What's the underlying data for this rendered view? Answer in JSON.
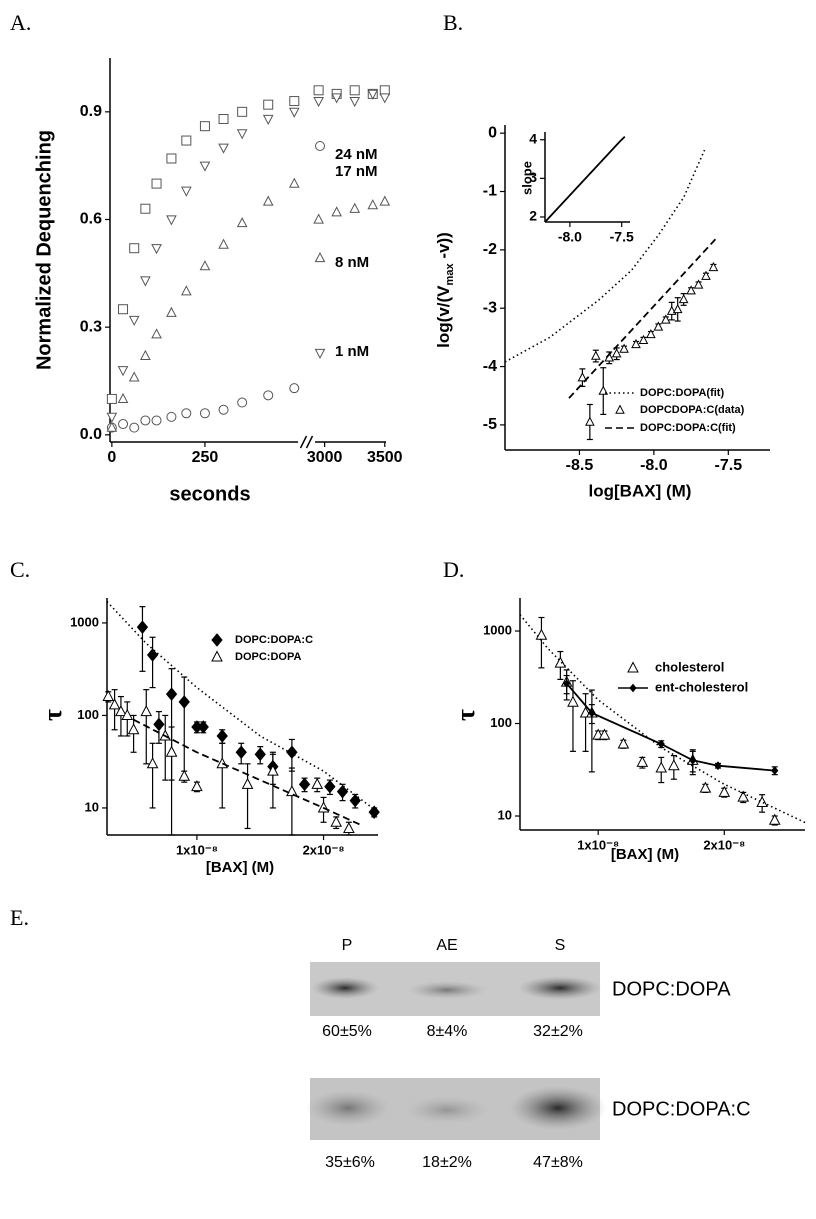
{
  "chart_data": [
    {
      "type": "scatter",
      "panel_label": "A.",
      "xlabel": "seconds",
      "ylabel": "Normalized Dequenching",
      "xlim": [
        -5,
        3510
      ],
      "xbreak": [
        500,
        2920
      ],
      "xticks": [
        0,
        250,
        3000,
        3500
      ],
      "ylim": [
        -0.02,
        1.05
      ],
      "yticks": [
        {
          "value": 0,
          "label": "0.0"
        },
        0.3,
        0.6,
        0.9
      ],
      "series": [
        {
          "name": "24 nM",
          "marker": "square",
          "filled": false,
          "color": "#555555",
          "x": [
            0,
            30,
            60,
            90,
            120,
            160,
            200,
            250,
            300,
            350,
            420,
            490,
            2950,
            3100,
            3250,
            3400,
            3500
          ],
          "values": [
            0.1,
            0.35,
            0.52,
            0.63,
            0.7,
            0.77,
            0.82,
            0.86,
            0.88,
            0.9,
            0.92,
            0.93,
            0.96,
            0.95,
            0.96,
            0.95,
            0.96
          ]
        },
        {
          "name": "17 nM",
          "marker": "circle",
          "filled": false,
          "color": "#555555",
          "x": [
            0,
            30,
            60,
            90,
            120,
            160,
            200,
            250,
            300,
            350,
            420,
            490
          ],
          "values": [
            0.02,
            0.03,
            0.02,
            0.04,
            0.04,
            0.05,
            0.06,
            0.06,
            0.07,
            0.09,
            0.11,
            0.13
          ]
        },
        {
          "name": "8 nM",
          "marker": "triangle",
          "filled": false,
          "color": "#555555",
          "x": [
            0,
            30,
            60,
            90,
            120,
            160,
            200,
            250,
            300,
            350,
            420,
            490,
            2950,
            3100,
            3250,
            3400,
            3500
          ],
          "values": [
            0.02,
            0.1,
            0.16,
            0.22,
            0.28,
            0.34,
            0.4,
            0.47,
            0.53,
            0.59,
            0.65,
            0.7,
            0.6,
            0.62,
            0.63,
            0.64,
            0.65
          ]
        },
        {
          "name": "1 nM",
          "marker": "triangle-down",
          "filled": false,
          "color": "#555555",
          "x": [
            0,
            30,
            60,
            90,
            120,
            160,
            200,
            250,
            300,
            350,
            420,
            490,
            2950,
            3100,
            3250,
            3400,
            3500
          ],
          "values": [
            0.05,
            0.18,
            0.32,
            0.43,
            0.52,
            0.6,
            0.68,
            0.75,
            0.8,
            0.84,
            0.88,
            0.9,
            0.93,
            0.94,
            0.93,
            0.95,
            0.94
          ]
        }
      ]
    },
    {
      "type": "scatter",
      "panel_label": "B.",
      "xlabel": "log[BAX] (M)",
      "ylabel_parts": [
        "log(v/(V",
        "max",
        " -v))"
      ],
      "xlim": [
        -9.0,
        -7.22
      ],
      "xticks": [
        -8.5,
        {
          "value": -8,
          "label": "-8.0"
        },
        -7.5
      ],
      "ylim": [
        -5.43,
        0.14
      ],
      "yticks": [
        0,
        -1,
        -2,
        -3,
        -4,
        -5
      ],
      "series": [
        {
          "name": "DOPC:DOPA(fit)",
          "line": "dotted",
          "color": "#000000",
          "x": [
            -9.0,
            -8.7,
            -8.37,
            -8.15,
            -7.97,
            -7.8,
            -7.66
          ],
          "values": [
            -3.92,
            -3.5,
            -2.86,
            -2.35,
            -1.75,
            -1.1,
            -0.29
          ]
        },
        {
          "name": "DOPCDOPA:C(data)",
          "marker": "triangle",
          "filled": false,
          "color": "#000000",
          "x": [
            -8.48,
            -8.43,
            -8.39,
            -8.34,
            -8.3,
            -8.25,
            -8.2,
            -8.12,
            -8.07,
            -8.02,
            -7.97,
            -7.92,
            -7.88,
            -7.84,
            -7.8,
            -7.75,
            -7.7,
            -7.65,
            -7.6
          ],
          "values": [
            -4.19,
            -4.95,
            -3.82,
            -4.42,
            -3.85,
            -3.78,
            -3.7,
            -3.62,
            -3.55,
            -3.45,
            -3.32,
            -3.2,
            -3.05,
            -3.02,
            -2.85,
            -2.7,
            -2.6,
            -2.45,
            -2.3
          ],
          "errors": [
            0.15,
            0.3,
            0.1,
            0.4,
            0.1,
            0.1,
            0.05,
            0.05,
            0.05,
            0.05,
            0.05,
            0.05,
            0.15,
            0.2,
            0.1,
            0.05,
            0.05,
            0.05,
            0.05
          ]
        },
        {
          "name": "DOPC:DOPA:C(fit)",
          "line": "dashed",
          "color": "#000000",
          "x": [
            -8.57,
            -7.58
          ],
          "values": [
            -4.54,
            -1.8
          ]
        }
      ],
      "inset": {
        "ylabel": "slope",
        "xlim": [
          -8.24,
          -7.42
        ],
        "xticks": [
          {
            "value": -8,
            "label": "-8.0"
          },
          -7.5
        ],
        "ylim": [
          1.87,
          4.2
        ],
        "yticks": [
          2,
          3,
          4
        ],
        "series": [
          {
            "line": "solid",
            "color": "#000000",
            "x": [
              -8.24,
              -7.52,
              -7.47
            ],
            "values": [
              1.87,
              3.95,
              4.08
            ]
          }
        ]
      }
    },
    {
      "type": "scatter",
      "panel_label": "C.",
      "xlabel": "[BAX] (M)",
      "ylabel": "τ",
      "yscale": "log",
      "xlim": [
        2.9e-09,
        2.43e-08
      ],
      "xticks": [
        {
          "value": 1e-08,
          "label": "1x10⁻⁸"
        },
        {
          "value": 2e-08,
          "label": "2x10⁻⁸"
        }
      ],
      "ylim": [
        5.1,
        1860
      ],
      "yticks": [
        10,
        100,
        1000
      ],
      "series": [
        {
          "name": "DOPC:DOPA:C",
          "marker": "diamond",
          "filled": true,
          "color": "#000000",
          "x": [
            5.7e-09,
            6.5e-09,
            7e-09,
            8e-09,
            9e-09,
            1e-08,
            1.05e-08,
            1.2e-08,
            1.35e-08,
            1.5e-08,
            1.6e-08,
            1.75e-08,
            1.85e-08,
            2.05e-08,
            2.15e-08,
            2.25e-08,
            2.4e-08
          ],
          "values": [
            900,
            450,
            80,
            170,
            140,
            75,
            75,
            60,
            40,
            38,
            28,
            40,
            18,
            17,
            15,
            12,
            9
          ],
          "errors": [
            600,
            250,
            30,
            150,
            120,
            10,
            10,
            10,
            10,
            8,
            10,
            15,
            3,
            3,
            3,
            2,
            1
          ]
        },
        {
          "name": "DOPC:DOPA",
          "marker": "triangle",
          "filled": false,
          "color": "#000000",
          "x": [
            3e-09,
            3.5e-09,
            4e-09,
            4.5e-09,
            5e-09,
            6e-09,
            6.5e-09,
            7.5e-09,
            8e-09,
            9e-09,
            1e-08,
            1.2e-08,
            1.4e-08,
            1.6e-08,
            1.75e-08,
            1.95e-08,
            2e-08,
            2.1e-08,
            2.2e-08
          ],
          "values": [
            160,
            130,
            110,
            100,
            70,
            110,
            30,
            60,
            40,
            22,
            17,
            30,
            18,
            25,
            15,
            18,
            10,
            7,
            6
          ],
          "errors": [
            20,
            60,
            50,
            40,
            30,
            80,
            20,
            40,
            35,
            3,
            2,
            20,
            12,
            15,
            12,
            3,
            3,
            1,
            1
          ]
        },
        {
          "line": "dotted",
          "color": "#000000",
          "x": [
            2.9e-09,
            6e-09,
            1e-08,
            1.5e-08,
            2e-08,
            2.43e-08
          ],
          "values": [
            1700,
            600,
            200,
            60,
            25,
            9
          ]
        },
        {
          "line": "dashed",
          "color": "#000000",
          "x": [
            5e-09,
            1e-08,
            1.5e-08,
            2e-08,
            2.3e-08
          ],
          "values": [
            90,
            40,
            20,
            10,
            6.5
          ]
        }
      ]
    },
    {
      "type": "scatter",
      "panel_label": "D.",
      "xlabel": "[BAX] (M)",
      "ylabel": "τ",
      "yscale": "log",
      "xlim": [
        3.8e-09,
        2.64e-08
      ],
      "xticks": [
        {
          "value": 1e-08,
          "label": "1x10⁻⁸"
        },
        {
          "value": 2e-08,
          "label": "2x10⁻⁸"
        }
      ],
      "ylim": [
        7.06,
        2275
      ],
      "yticks": [
        10,
        100,
        1000
      ],
      "series": [
        {
          "name": "cholesterol",
          "marker": "triangle",
          "filled": false,
          "color": "#000000",
          "x": [
            5.5e-09,
            7e-09,
            7.5e-09,
            8e-09,
            9e-09,
            9.5e-09,
            1e-08,
            1.05e-08,
            1.2e-08,
            1.35e-08,
            1.5e-08,
            1.6e-08,
            1.75e-08,
            1.85e-08,
            2e-08,
            2.15e-08,
            2.3e-08,
            2.4e-08
          ],
          "values": [
            900,
            450,
            280,
            170,
            130,
            130,
            75,
            75,
            60,
            38,
            33,
            35,
            40,
            20,
            18,
            16,
            14,
            9
          ],
          "errors": [
            500,
            150,
            100,
            120,
            80,
            100,
            8,
            8,
            6,
            5,
            10,
            10,
            12,
            2,
            2,
            2,
            3,
            1
          ]
        },
        {
          "name": "ent-cholesterol",
          "marker": "diamond",
          "filled": true,
          "line": "solid",
          "color": "#000000",
          "x": [
            7.5e-09,
            9.5e-09,
            1.5e-08,
            1.75e-08,
            1.95e-08,
            2.4e-08
          ],
          "values": [
            270,
            130,
            60,
            40,
            35,
            31
          ],
          "errors": [
            60,
            30,
            5,
            10,
            2,
            3
          ]
        },
        {
          "line": "dotted",
          "color": "#000000",
          "x": [
            3.8e-09,
            6e-09,
            1e-08,
            1.5e-08,
            2e-08,
            2.64e-08
          ],
          "values": [
            1500,
            650,
            180,
            55,
            22,
            8.5
          ]
        }
      ]
    }
  ],
  "gel": {
    "panel_label": "E.",
    "lanes": [
      "P",
      "AE",
      "S"
    ],
    "rows": [
      {
        "label": "DOPC:DOPA",
        "values": [
          "60±5%",
          "8±4%",
          "32±2%"
        ]
      },
      {
        "label": "DOPC:DOPA:C",
        "values": [
          "35±6%",
          "18±2%",
          "47±8%"
        ]
      }
    ]
  }
}
